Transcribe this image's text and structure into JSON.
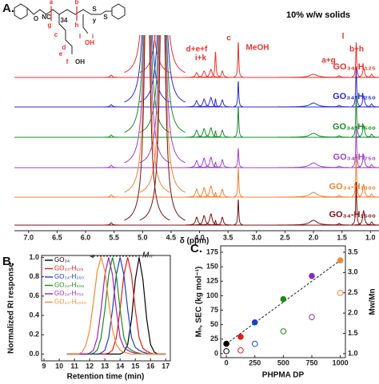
{
  "chart_data": [
    {
      "type": "nmr",
      "title": "A.",
      "annotation": "10% w/w solids",
      "xlabel": "δ (ppm)",
      "xlim": [
        7.25,
        0.85
      ],
      "xticks": [
        {
          "value": 7,
          "label": "7.0"
        },
        6.5,
        {
          "value": 6,
          "label": "6.0"
        },
        5.5,
        {
          "value": 5,
          "label": "5.0"
        },
        4.5,
        {
          "value": 4,
          "label": "4.0"
        },
        3.5,
        {
          "value": 3,
          "label": "3.0"
        },
        2.5,
        {
          "value": 2,
          "label": "2.0"
        },
        1.5,
        {
          "value": 1,
          "label": "1.0"
        }
      ],
      "x": [
        5.55,
        4.92,
        4.65,
        4.05,
        3.92,
        3.8,
        3.72,
        3.6,
        3.32,
        2.0,
        1.55,
        1.25,
        1.12,
        0.98
      ],
      "widths": [
        0.02,
        0.05,
        0.05,
        0.025,
        0.025,
        0.025,
        0.012,
        0.02,
        0.01,
        0.08,
        0.03,
        0.01,
        0.02,
        0.02
      ],
      "series": [
        {
          "name": "GO₃₄-H₁₂₅",
          "color": "#e8322a",
          "values": [
            0.15,
            20,
            20,
            0.3,
            0.4,
            0.5,
            1.6,
            0.4,
            2.2,
            0.2,
            0.1,
            2.2,
            0.6,
            0.2
          ]
        },
        {
          "name": "GO₃₄-H₂₅₀",
          "color": "#2b2bd0",
          "values": [
            0.15,
            20,
            20,
            0.4,
            0.5,
            0.6,
            0.5,
            0.45,
            1.6,
            0.25,
            0.1,
            2.5,
            0.7,
            0.2
          ]
        },
        {
          "name": "GO₃₄-H₅₀₀",
          "color": "#1a8a2a",
          "values": [
            0.15,
            20,
            20,
            0.45,
            0.55,
            0.6,
            0.4,
            0.45,
            1.9,
            0.25,
            0.1,
            2.6,
            0.75,
            0.2
          ]
        },
        {
          "name": "GO₃₄-H₇₅₀",
          "color": "#a040d0",
          "values": [
            0.15,
            20,
            20,
            0.45,
            0.6,
            0.65,
            0.35,
            0.5,
            1.2,
            0.3,
            0.1,
            2.6,
            0.8,
            0.2
          ]
        },
        {
          "name": "GO₃₄-H₁₀₀₀",
          "color": "#f08030",
          "values": [
            0.15,
            20,
            20,
            0.5,
            0.6,
            0.7,
            0.3,
            0.5,
            1.8,
            0.3,
            0.1,
            2.7,
            0.8,
            0.2
          ]
        },
        {
          "name": "GO₃₄-H₁₅₀₀",
          "color": "#7a1010",
          "values": [
            0.15,
            20,
            20,
            0.5,
            0.6,
            0.7,
            0.3,
            0.5,
            1.6,
            0.3,
            0.1,
            2.7,
            0.9,
            0.2
          ]
        }
      ],
      "peak_labels": [
        "d+e+f",
        "i+k",
        "c",
        "MeOH",
        "a+g",
        "l",
        "b+h"
      ],
      "structure_labels": [
        "NC",
        "a",
        "b",
        "34",
        "g",
        "h",
        "y",
        "c",
        "d",
        "e",
        "f",
        "OH",
        "l",
        "i",
        "OH",
        "O",
        "S",
        "S"
      ]
    },
    {
      "type": "line",
      "title": "B.",
      "xlabel": "Retention time (min)",
      "ylabel": "Normalized RI response",
      "annotation": "Mₙ",
      "xlim": [
        8.84,
        17.3
      ],
      "xticks": [
        9,
        10,
        11,
        12,
        13,
        14,
        15,
        16,
        17
      ],
      "ylim": [
        -0.07,
        1.02
      ],
      "yticks": [
        {
          "value": 0,
          "label": "0.0"
        },
        0.2,
        0.4,
        0.6,
        0.8,
        {
          "value": 1,
          "label": "1.0"
        }
      ],
      "x": [
        10.5,
        10.75,
        11,
        11.25,
        11.5,
        11.75,
        12,
        12.25,
        12.5,
        12.75,
        13,
        13.25,
        13.5,
        13.75,
        14,
        14.25,
        14.5,
        14.75,
        15,
        15.25,
        15.5,
        15.75,
        16,
        16.25,
        16.5,
        16.75,
        17
      ],
      "series": [
        {
          "name": "GO₃₄",
          "color": "#000000",
          "values": [
            0,
            0,
            0,
            0,
            0,
            0,
            0,
            0,
            0,
            0,
            0,
            0,
            0,
            0,
            0,
            0.02,
            0.1,
            0.36,
            0.77,
            1,
            0.77,
            0.36,
            0.1,
            0.02,
            0,
            0,
            0
          ]
        },
        {
          "name": "GO₃₄-H₁₂₅",
          "color": "#e41a1c",
          "values": [
            0,
            0,
            0,
            0,
            0,
            0,
            0,
            0,
            0,
            0,
            0,
            0.01,
            0.04,
            0.17,
            0.46,
            0.82,
            1,
            0.82,
            0.46,
            0.17,
            0.06,
            0.03,
            0.01,
            0,
            0,
            0,
            0
          ]
        },
        {
          "name": "GO₃₄-H₂₅₀",
          "color": "#1f3fbf",
          "values": [
            0,
            0,
            0,
            0,
            0,
            0,
            0,
            0,
            0,
            0.01,
            0.04,
            0.17,
            0.46,
            0.82,
            1,
            0.82,
            0.46,
            0.17,
            0.07,
            0.04,
            0.02,
            0.01,
            0,
            0,
            0,
            0,
            0
          ]
        },
        {
          "name": "GO₃₄-H₅₀₀",
          "color": "#1a8a1a",
          "values": [
            0,
            0,
            0,
            0,
            0,
            0,
            0,
            0.01,
            0.04,
            0.17,
            0.46,
            0.82,
            1,
            0.82,
            0.46,
            0.17,
            0.07,
            0.04,
            0.02,
            0.01,
            0,
            0,
            0,
            0,
            0,
            0,
            0
          ]
        },
        {
          "name": "GO₃₄-H₇₅₀",
          "color": "#a020c0",
          "values": [
            0,
            0,
            0,
            0,
            0,
            0,
            0.01,
            0.04,
            0.17,
            0.46,
            0.82,
            1,
            0.82,
            0.46,
            0.17,
            0.07,
            0.04,
            0.02,
            0.01,
            0,
            0,
            0,
            0,
            0,
            0,
            0,
            0
          ]
        },
        {
          "name": "GO₃₄-H₁₀₀₀",
          "color": "#f28b30",
          "values": [
            0,
            0,
            0,
            0,
            0.02,
            0.09,
            0.25,
            0.54,
            0.86,
            1,
            0.86,
            0.54,
            0.25,
            0.1,
            0.04,
            0.02,
            0.01,
            0,
            0,
            0,
            0,
            0,
            0,
            0,
            0,
            0,
            0
          ]
        }
      ]
    },
    {
      "type": "scatter",
      "title": "C.",
      "xlabel": "PHPMA DP",
      "ylabel": "Mₙ, SEC (kg mol⁻¹)",
      "y2label": "Mw/Mn",
      "xlim": [
        -50,
        1045
      ],
      "xticks": [
        0,
        250,
        500,
        750,
        1000
      ],
      "ylim": [
        -7,
        186
      ],
      "yticks": [
        0,
        25,
        50,
        75,
        100,
        125,
        150,
        175
      ],
      "y2lim": [
        0.9,
        3.657
      ],
      "y2ticks": [
        {
          "value": 1,
          "label": "1.0"
        },
        1.5,
        {
          "value": 2,
          "label": "2.0"
        },
        2.5,
        {
          "value": 3,
          "label": "3.0"
        },
        3.5
      ],
      "trendline": true,
      "x": [
        0,
        125,
        250,
        500,
        750,
        1000
      ],
      "series": [
        {
          "marker": "filled",
          "colors": [
            "#000000",
            "#e41a1c",
            "#1f3fbf",
            "#1a8a1a",
            "#8a2bb0",
            "#f28b30"
          ],
          "values": [
            17,
            29,
            54,
            94,
            134,
            161
          ]
        },
        {
          "marker": "open",
          "axis": "y2",
          "colors": [
            "#000000",
            "#e41a1c",
            "#1f3fbf",
            "#1a8a1a",
            "#8a2bb0",
            "#f28b30"
          ],
          "values": [
            1.06,
            1.08,
            1.24,
            1.55,
            1.9,
            2.5
          ]
        }
      ]
    }
  ]
}
